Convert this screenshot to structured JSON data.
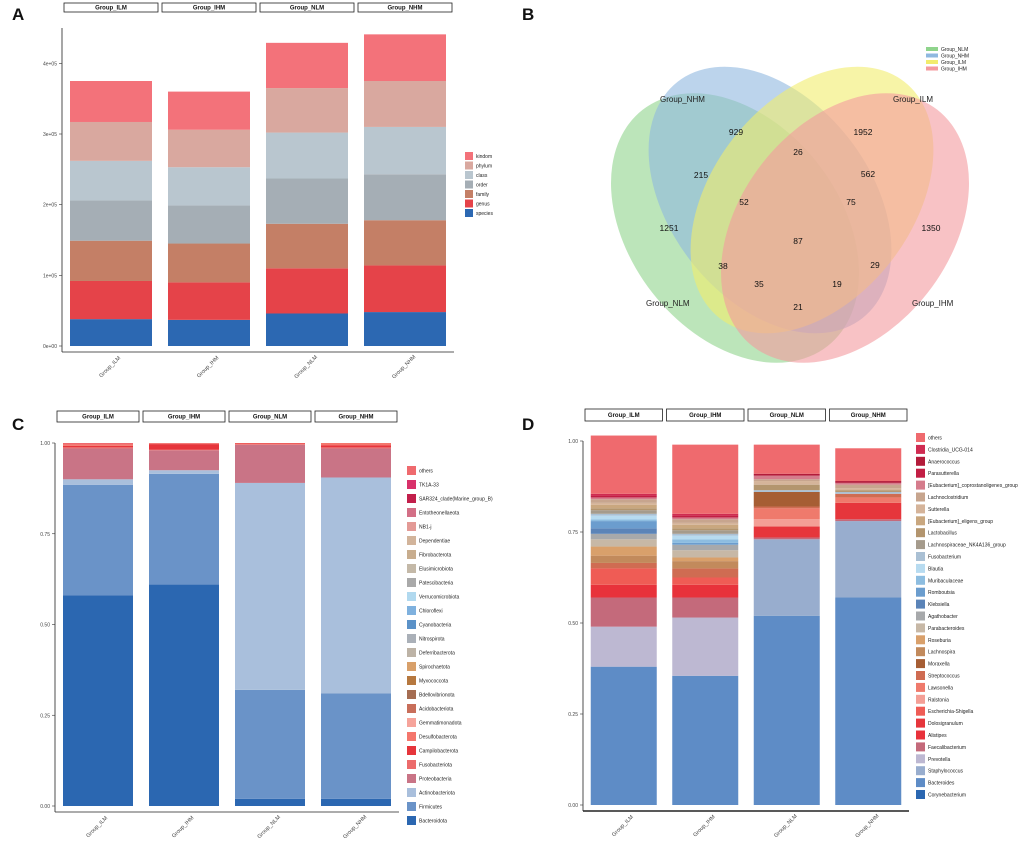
{
  "panels": {
    "a": "A",
    "b": "B",
    "c": "C",
    "d": "D"
  },
  "colors": {
    "ranks": [
      "#f3727a",
      "#d9a89f",
      "#b9c6cf",
      "#a5aeb5",
      "#c47f66",
      "#e54349",
      "#2c68b2"
    ],
    "venn": {
      "Group_NLM": "#8fd48c",
      "Group_NHM": "#8fb8e0",
      "Group_ILM": "#f2ec6c",
      "Group_IHM": "#f49a9e"
    },
    "phylum": [
      "#ef6a6e",
      "#d8316a",
      "#c21f4b",
      "#d36f86",
      "#e39a96",
      "#d2b49b",
      "#c8ad8e",
      "#c4b9a8",
      "#a9a9a9",
      "#b1d9ef",
      "#7fb1de",
      "#5b92c8",
      "#aab0b8",
      "#bdb3a6",
      "#d8a06a",
      "#b6783f",
      "#a56d52",
      "#c86e5a",
      "#f6a49b",
      "#f4766c",
      "#e6353b",
      "#ec6b6b",
      "#c97486",
      "#a9bfdc",
      "#6a93c8",
      "#2b67b1"
    ],
    "genus": [
      "#ef6a6e",
      "#d02b51",
      "#b31b3a",
      "#c21e44",
      "#d57c8c",
      "#c7a58e",
      "#d5b49a",
      "#c9a77f",
      "#b3956e",
      "#a59b8c",
      "#aac0d4",
      "#b7dbf0",
      "#8dbde0",
      "#6b9dce",
      "#5b84b8",
      "#a7a9ab",
      "#c7b8a6",
      "#d9a06b",
      "#c28a5c",
      "#a65e34",
      "#cf6c52",
      "#ef7a6c",
      "#f49f96",
      "#ef5c55",
      "#e6363c",
      "#e8323b",
      "#c46a7b",
      "#bdb8d2",
      "#98adce",
      "#5e8cc6",
      "#2b67b1"
    ]
  },
  "chart_data": [
    {
      "panel": "A",
      "type": "bar",
      "stacked": true,
      "facets": [
        "Group_ILM",
        "Group_IHM",
        "Group_NLM",
        "Group_NHM"
      ],
      "categories": [
        "Group_ILM",
        "Group_IHM",
        "Group_NLM",
        "Group_NHM"
      ],
      "ylim": [
        0,
        450000
      ],
      "yticks": [
        0,
        100000,
        200000,
        300000,
        400000
      ],
      "ytick_labels": [
        "0e+00",
        "1e+05",
        "2e+05",
        "3e+05",
        "4e+05"
      ],
      "legend": [
        "kindom",
        "phylum",
        "class",
        "order",
        "family",
        "genus",
        "species"
      ],
      "series": [
        {
          "name": "species",
          "values": [
            38000,
            37000,
            46000,
            48000
          ]
        },
        {
          "name": "genus",
          "values": [
            54000,
            53000,
            64000,
            66000
          ]
        },
        {
          "name": "family",
          "values": [
            57000,
            55000,
            63000,
            64000
          ]
        },
        {
          "name": "order",
          "values": [
            57000,
            54000,
            64000,
            65000
          ]
        },
        {
          "name": "class",
          "values": [
            56000,
            54000,
            65000,
            67000
          ]
        },
        {
          "name": "phylum",
          "values": [
            55000,
            53000,
            63000,
            65000
          ]
        },
        {
          "name": "kindom",
          "values": [
            58000,
            54000,
            64000,
            66000
          ]
        }
      ]
    },
    {
      "panel": "B",
      "type": "venn",
      "sets": [
        "Group_NLM",
        "Group_NHM",
        "Group_ILM",
        "Group_IHM"
      ],
      "legend": [
        "Group_NLM",
        "Group_NHM",
        "Group_ILM",
        "Group_IHM"
      ],
      "regions": [
        {
          "sets": [
            "Group_NHM"
          ],
          "value": 929
        },
        {
          "sets": [
            "Group_ILM"
          ],
          "value": 1952
        },
        {
          "sets": [
            "Group_NLM"
          ],
          "value": 1251
        },
        {
          "sets": [
            "Group_IHM"
          ],
          "value": 1350
        },
        {
          "sets": [
            "Group_NHM",
            "Group_ILM"
          ],
          "value": 26
        },
        {
          "sets": [
            "Group_NLM",
            "Group_NHM"
          ],
          "value": 215
        },
        {
          "sets": [
            "Group_ILM",
            "Group_IHM"
          ],
          "value": 562
        },
        {
          "sets": [
            "Group_NLM",
            "Group_NHM",
            "Group_ILM"
          ],
          "value": 52
        },
        {
          "sets": [
            "Group_NHM",
            "Group_ILM",
            "Group_IHM"
          ],
          "value": 75
        },
        {
          "sets": [
            "Group_NLM",
            "Group_NHM",
            "Group_ILM",
            "Group_IHM"
          ],
          "value": 87
        },
        {
          "sets": [
            "Group_NLM",
            "Group_ILM"
          ],
          "value": 38
        },
        {
          "sets": [
            "Group_NHM",
            "Group_IHM"
          ],
          "value": 29
        },
        {
          "sets": [
            "Group_NLM",
            "Group_ILM",
            "Group_IHM"
          ],
          "value": 35
        },
        {
          "sets": [
            "Group_NLM",
            "Group_NHM",
            "Group_IHM"
          ],
          "value": 19
        },
        {
          "sets": [
            "Group_NLM",
            "Group_IHM"
          ],
          "value": 21
        }
      ]
    },
    {
      "panel": "C",
      "type": "bar",
      "stacked": true,
      "level": "phylum",
      "facets": [
        "Group_ILM",
        "Group_IHM",
        "Group_NLM",
        "Group_NHM"
      ],
      "categories": [
        "Group_ILM",
        "Group_IHM",
        "Group_NLM",
        "Group_NHM"
      ],
      "ylim": [
        0,
        1
      ],
      "yticks": [
        0,
        0.25,
        0.5,
        0.75,
        1.0
      ],
      "ytick_labels": [
        "0.00",
        "0.25",
        "0.50",
        "0.75",
        "1.00"
      ],
      "legend": [
        "others",
        "TK1A-33",
        "SAR324_clade(Marine_group_B)",
        "Entotheonellaeota",
        "NB1-j",
        "Dependentiae",
        "Fibrobacterota",
        "Elusimicrobiota",
        "Patescibacteria",
        "Verrucomicrobiota",
        "Chloroflexi",
        "Cyanobacteria",
        "Nitrospirota",
        "Deferribacterota",
        "Spirochaetota",
        "Myxococcota",
        "Bdellovibrionota",
        "Acidobacteriota",
        "Gemmatimonadota",
        "Desulfobacterota",
        "Campilobacterota",
        "Fusobacteriota",
        "Proteobacteria",
        "Actinobacteriota",
        "Firmicutes",
        "Bacteroidota"
      ],
      "series": [
        {
          "name": "Bacteroidota",
          "values": [
            0.58,
            0.61,
            0.02,
            0.02
          ]
        },
        {
          "name": "Firmicutes",
          "values": [
            0.305,
            0.305,
            0.3,
            0.29
          ]
        },
        {
          "name": "Actinobacteriota",
          "values": [
            0.015,
            0.01,
            0.57,
            0.595
          ]
        },
        {
          "name": "Proteobacteria",
          "values": [
            0.085,
            0.055,
            0.105,
            0.08
          ]
        },
        {
          "name": "Fusobacteriota",
          "values": [
            0.004,
            0.002,
            0.002,
            0.003
          ]
        },
        {
          "name": "Campilobacterota",
          "values": [
            0.003,
            0.015,
            0.002,
            0.006
          ]
        },
        {
          "name": "Desulfobacterota",
          "values": [
            0.004,
            0.002,
            0.001,
            0.006
          ]
        },
        {
          "name": "others",
          "values": [
            0.004,
            0.001,
            0.0,
            0.0
          ]
        }
      ]
    },
    {
      "panel": "D",
      "type": "bar",
      "stacked": true,
      "level": "genus",
      "facets": [
        "Group_ILM",
        "Group_IHM",
        "Group_NLM",
        "Group_NHM"
      ],
      "categories": [
        "Group_ILM",
        "Group_IHM",
        "Group_NLM",
        "Group_NHM"
      ],
      "ylim": [
        0,
        1
      ],
      "yticks": [
        0,
        0.25,
        0.5,
        0.75,
        1.0
      ],
      "ytick_labels": [
        "0.00",
        "0.25",
        "0.50",
        "0.75",
        "1.00"
      ],
      "legend": [
        "others",
        "Clostridia_UCG-014",
        "Anaerococcus",
        "Parasutterella",
        "[Eubacterium]_coprostanoligenes_group",
        "Lachnoclostridium",
        "Sutterella",
        "[Eubacterium]_eligens_group",
        "Lactobacillus",
        "Lachnospiraceae_NK4A136_group",
        "Fusobacterium",
        "Blautia",
        "Muribaculaceae",
        "Romboutsia",
        "Klebsiella",
        "Agathobacter",
        "Parabacteroides",
        "Roseburia",
        "Lachnospira",
        "Moraxella",
        "Streptococcus",
        "Lawsonella",
        "Ralstonia",
        "Escherichia-Shigella",
        "Dolosigranulum",
        "Alistipes",
        "Faecalibacterium",
        "Prevotella",
        "Staphylococcus",
        "Bacteroides",
        "Corynebacterium"
      ],
      "series": [
        {
          "name": "Bacteroides",
          "values": [
            0.38,
            0.355,
            0.52,
            0.57
          ]
        },
        {
          "name": "Staphylococcus",
          "values": [
            0.0,
            0.0,
            0.21,
            0.21
          ]
        },
        {
          "name": "Prevotella",
          "values": [
            0.11,
            0.16,
            0.0,
            0.0
          ]
        },
        {
          "name": "Corynebacterium",
          "values": [
            0.0,
            0.0,
            0.0,
            0.0
          ]
        },
        {
          "name": "Faecalibacterium",
          "values": [
            0.08,
            0.055,
            0.005,
            0.005
          ]
        },
        {
          "name": "Alistipes",
          "values": [
            0.035,
            0.035,
            0.0,
            0.0
          ]
        },
        {
          "name": "Dolosigranulum",
          "values": [
            0.0,
            0.0,
            0.03,
            0.045
          ]
        },
        {
          "name": "Escherichia-Shigella",
          "values": [
            0.045,
            0.02,
            0.0,
            0.0
          ]
        },
        {
          "name": "Ralstonia",
          "values": [
            0.0,
            0.0,
            0.02,
            0.0
          ]
        },
        {
          "name": "Lawsonella",
          "values": [
            0.0,
            0.0,
            0.03,
            0.015
          ]
        },
        {
          "name": "Streptococcus",
          "values": [
            0.015,
            0.025,
            0.005,
            0.01
          ]
        },
        {
          "name": "Moraxella",
          "values": [
            0.0,
            0.0,
            0.04,
            0.0
          ]
        },
        {
          "name": "Lachnospira",
          "values": [
            0.02,
            0.02,
            0.0,
            0.0
          ]
        },
        {
          "name": "Roseburia",
          "values": [
            0.025,
            0.01,
            0.0,
            0.0
          ]
        },
        {
          "name": "Parabacteroides",
          "values": [
            0.02,
            0.02,
            0.0,
            0.0
          ]
        },
        {
          "name": "Agathobacter",
          "values": [
            0.015,
            0.015,
            0.0,
            0.0
          ]
        },
        {
          "name": "Klebsiella",
          "values": [
            0.015,
            0.0,
            0.0,
            0.0
          ]
        },
        {
          "name": "Romboutsia",
          "values": [
            0.02,
            0.005,
            0.0,
            0.0
          ]
        },
        {
          "name": "Muribaculaceae",
          "values": [
            0.005,
            0.01,
            0.0,
            0.0
          ]
        },
        {
          "name": "Blautia",
          "values": [
            0.01,
            0.01,
            0.0,
            0.0
          ]
        },
        {
          "name": "Fusobacterium",
          "values": [
            0.005,
            0.005,
            0.005,
            0.005
          ]
        },
        {
          "name": "Lachnospiraceae_NK4A136_group",
          "values": [
            0.01,
            0.01,
            0.0,
            0.0
          ]
        },
        {
          "name": "Lactobacillus",
          "values": [
            0.005,
            0.005,
            0.015,
            0.005
          ]
        },
        {
          "name": "[Eubacterium]_eligens_group",
          "values": [
            0.01,
            0.01,
            0.0,
            0.0
          ]
        },
        {
          "name": "Sutterella",
          "values": [
            0.005,
            0.005,
            0.01,
            0.005
          ]
        },
        {
          "name": "Lachnoclostridium",
          "values": [
            0.01,
            0.01,
            0.005,
            0.01
          ]
        },
        {
          "name": "[Eubacterium]_coprostanoligenes_group",
          "values": [
            0.005,
            0.005,
            0.01,
            0.005
          ]
        },
        {
          "name": "Parasutterella",
          "values": [
            0.005,
            0.005,
            0.0,
            0.0
          ]
        },
        {
          "name": "Anaerococcus",
          "values": [
            0.0,
            0.0,
            0.005,
            0.005
          ]
        },
        {
          "name": "Clostridia_UCG-014",
          "values": [
            0.005,
            0.005,
            0.0,
            0.0
          ]
        },
        {
          "name": "others",
          "values": [
            0.16,
            0.19,
            0.08,
            0.09
          ]
        }
      ]
    }
  ]
}
